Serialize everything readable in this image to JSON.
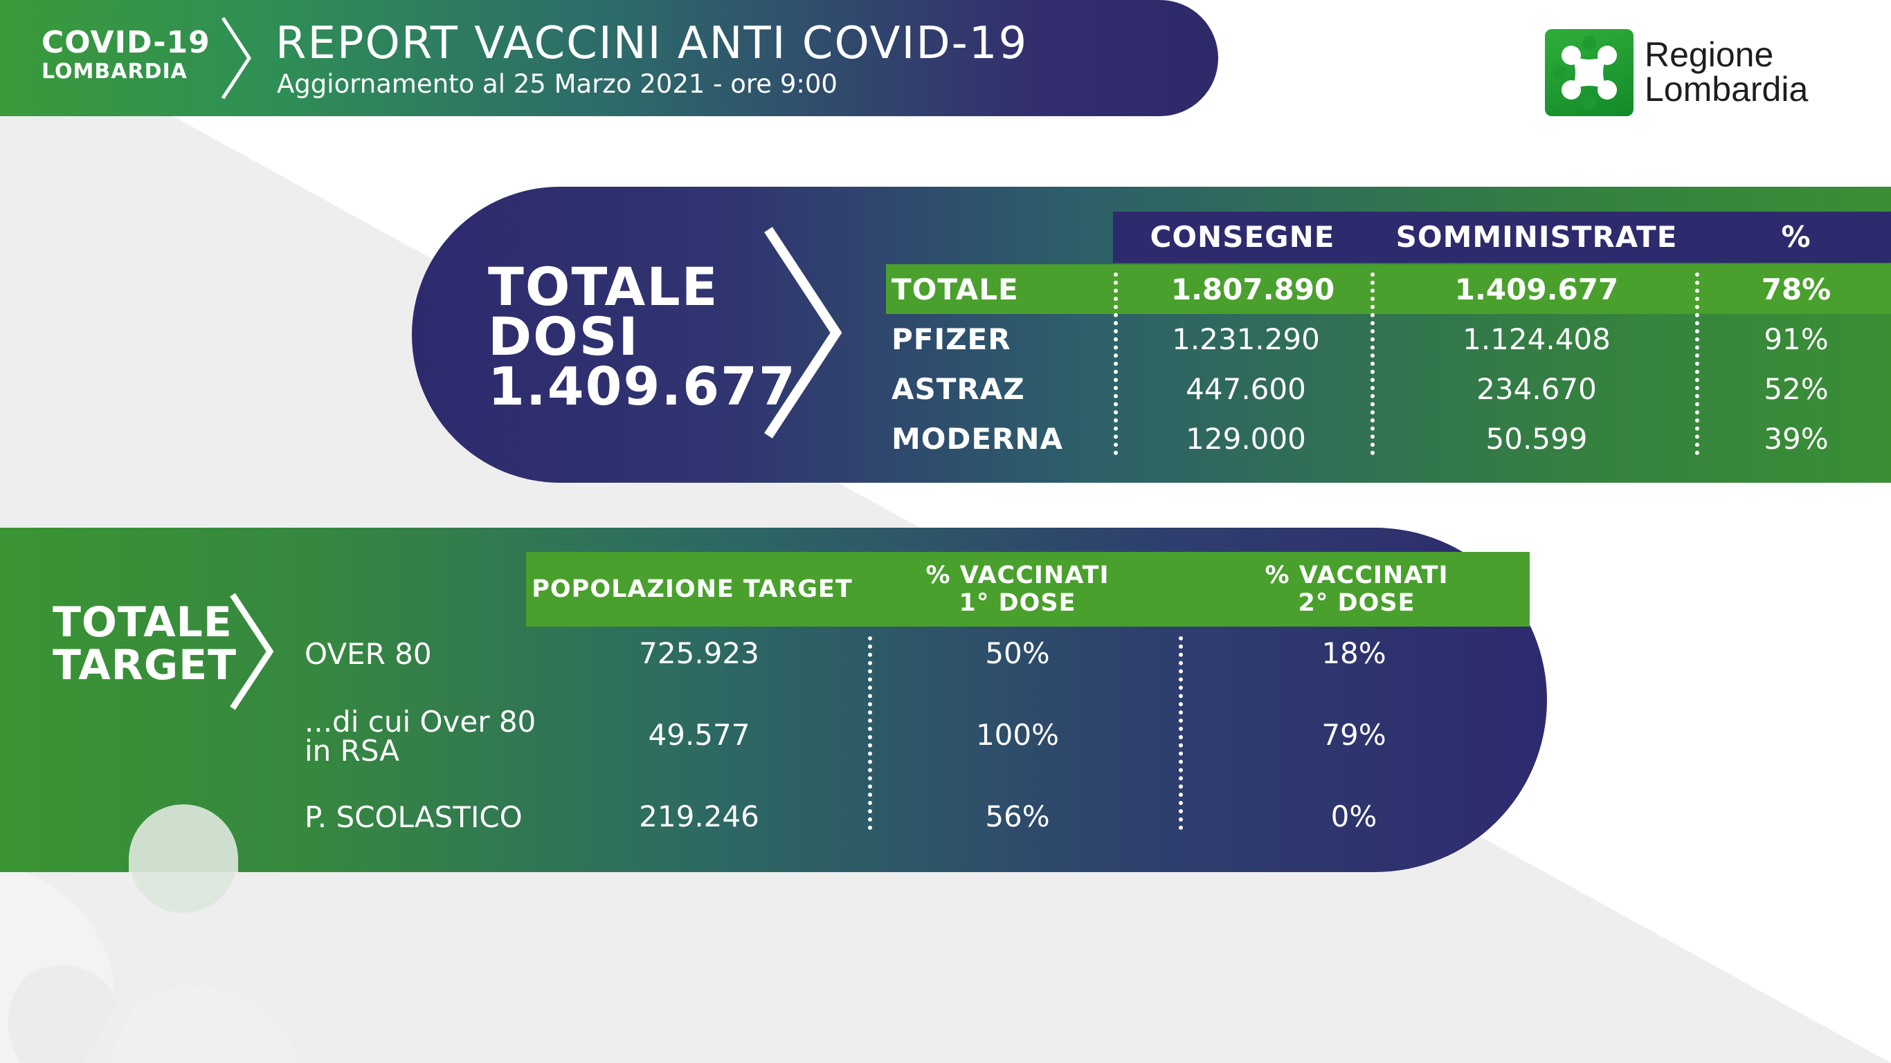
{
  "header": {
    "covid_label": "COVID-19",
    "region_label": "LOMBARDIA",
    "title": "REPORT VACCINI ANTI COVID-19",
    "subtitle": "Aggiornamento al 25 Marzo 2021 - ore 9:00"
  },
  "logo": {
    "line1": "Regione",
    "line2": "Lombardia",
    "icon": "regione-lombardia-rosa-camuna-icon"
  },
  "doses": {
    "headline_line1": "TOTALE",
    "headline_line2": "DOSI",
    "headline_value": "1.409.677",
    "columns": [
      "CONSEGNE",
      "SOMMINISTRATE",
      "%"
    ],
    "rows": [
      {
        "label": "TOTALE",
        "consegne": "1.807.890",
        "somministrate": "1.409.677",
        "pct": "78%"
      },
      {
        "label": "PFIZER",
        "consegne": "1.231.290",
        "somministrate": "1.124.408",
        "pct": "91%"
      },
      {
        "label": "ASTRAZ",
        "consegne": "447.600",
        "somministrate": "234.670",
        "pct": "52%"
      },
      {
        "label": "MODERNA",
        "consegne": "129.000",
        "somministrate": "50.599",
        "pct": "39%"
      }
    ]
  },
  "target": {
    "headline_line1": "TOTALE",
    "headline_line2": "TARGET",
    "columns": {
      "popolazione": "POPOLAZIONE TARGET",
      "dose1_line1": "% VACCINATI",
      "dose1_line2": "1° DOSE",
      "dose2_line1": "% VACCINATI",
      "dose2_line2": "2° DOSE"
    },
    "rows": [
      {
        "label": "OVER 80",
        "label2": "",
        "popolazione": "725.923",
        "dose1": "50%",
        "dose2": "18%"
      },
      {
        "label": "...di cui Over 80",
        "label2": "in RSA",
        "popolazione": "49.577",
        "dose1": "100%",
        "dose2": "79%"
      },
      {
        "label": "P. SCOLASTICO",
        "label2": "",
        "popolazione": "219.246",
        "dose1": "56%",
        "dose2": "0%"
      }
    ]
  },
  "colors": {
    "green": "#4aa02d",
    "navy": "#2e2a6e",
    "teal": "#2d6a62"
  }
}
